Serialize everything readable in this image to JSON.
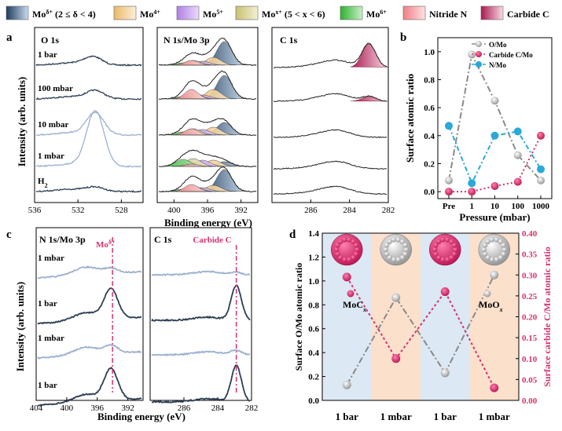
{
  "colors": {
    "dark": "#2d3e55",
    "light": "#9db1cf",
    "gray_marker": "#8a8a8a",
    "pink": "#d63070",
    "cyan": "#2aa9d8",
    "mo_delta": "#2f5a84",
    "mo4": "#f2d49a",
    "mo5": "#c9a6ee",
    "mox": "#d9d59a",
    "mo6": "#66cc66",
    "nitride": "#f4a0a4",
    "carbide": "#c23a6a",
    "bg_blue": "#dce8f4",
    "bg_orange": "#fbe0cc"
  },
  "legend": {
    "items": [
      {
        "label": "Mo",
        "sup": "δ+",
        "suffix": " (2 ≤ δ < 4)",
        "color": "#2f5a84"
      },
      {
        "label": "Mo",
        "sup": "4+",
        "suffix": "",
        "color": "#f2d49a"
      },
      {
        "label": "Mo",
        "sup": "5+",
        "suffix": "",
        "color": "#c9a6ee"
      },
      {
        "label": "Mo",
        "sup": "x+",
        "suffix": " (5 < x < 6)",
        "color": "#d9d59a"
      },
      {
        "label": "Mo",
        "sup": "6+",
        "suffix": "",
        "color": "#66cc66"
      },
      {
        "label": "Nitride N",
        "sup": "",
        "suffix": "",
        "color": "#f4a0a4"
      },
      {
        "label": "Carbide C",
        "sup": "",
        "suffix": "",
        "color": "#c23a6a"
      }
    ]
  },
  "panels": {
    "a": {
      "letter": "a",
      "ylabel": "Intensity (arb. units)",
      "xlabel": "Binding energy (eV)",
      "sub_o": "O 1s",
      "sub_n": "N 1s/Mo 3p",
      "sub_c": "C 1s",
      "row_labels": [
        "1 bar",
        "100 mbar",
        "10 mbar",
        "1 mbar",
        "H2"
      ]
    },
    "b": {
      "letter": "b"
    },
    "c": {
      "letter": "c",
      "ylabel": "Intensity (arb. units)",
      "xlabel": "Binding energy (eV)",
      "sub_n": "N 1s/Mo 3p",
      "sub_c": "C 1s",
      "mo_annot": "Moδ+",
      "carbide_annot": "Carbide C",
      "row_labels": [
        "1 mbar",
        "1 bar",
        "1 mbar",
        "1 bar"
      ]
    },
    "d": {
      "letter": "d"
    }
  },
  "chart_data": [
    {
      "id": "a-O1s",
      "type": "line",
      "title": "O 1s",
      "xlabel": "Binding energy (eV)",
      "ylabel": "Intensity (arb. units)",
      "xlim": [
        536,
        526
      ],
      "xticks": [
        536,
        532,
        528
      ],
      "series": [
        {
          "name": "1 bar",
          "peak_eV": 530.6,
          "color": "dark"
        },
        {
          "name": "100 mbar",
          "peak_eV": 530.4,
          "color": "dark"
        },
        {
          "name": "10 mbar",
          "peak_eV": 530.4,
          "color": "light"
        },
        {
          "name": "1 mbar",
          "peak_eV": 530.4,
          "color": "light"
        },
        {
          "name": "H2",
          "peak_eV": 530.4,
          "color": "dark"
        }
      ]
    },
    {
      "id": "a-N1s-Mo3p",
      "type": "line",
      "title": "N 1s/Mo 3p",
      "xlabel": "Binding energy (eV)",
      "xlim": [
        402,
        390
      ],
      "xticks": [
        400,
        396,
        392
      ],
      "components": [
        "Mo δ+",
        "Mo 4+",
        "Mo 5+",
        "Mo x+",
        "Mo 6+",
        "Nitride N"
      ],
      "series": [
        "1 bar",
        "100 mbar",
        "10 mbar",
        "1 mbar",
        "H2"
      ]
    },
    {
      "id": "a-C1s",
      "type": "line",
      "title": "C 1s",
      "xlabel": "Binding energy (eV)",
      "xlim": [
        288,
        282
      ],
      "xticks": [
        286,
        284,
        282
      ],
      "components": [
        "Carbide C"
      ],
      "series": [
        "1 bar",
        "100 mbar",
        "10 mbar",
        "1 mbar",
        "H2"
      ]
    },
    {
      "id": "b",
      "type": "line",
      "title": "",
      "xlabel": "Pressure (mbar)",
      "ylabel": "Surface atomic ratio",
      "categories": [
        "Pre",
        "1",
        "10",
        "100",
        "1000"
      ],
      "ylim": [
        -0.05,
        1.1
      ],
      "yticks": [
        "0.0",
        "0.2",
        "0.4",
        "0.6",
        "0.8",
        "1.0"
      ],
      "series": [
        {
          "name": "O/Mo",
          "values": [
            0.08,
            0.98,
            0.65,
            0.26,
            0.08
          ],
          "color": "gray_marker",
          "dash": "8,3,2,3"
        },
        {
          "name": "Carbide C/Mo",
          "values": [
            0.0,
            0.0,
            0.04,
            0.07,
            0.4
          ],
          "color": "pink",
          "dash": "2,3"
        },
        {
          "name": "N/Mo",
          "values": [
            0.47,
            0.06,
            0.4,
            0.43,
            0.16
          ],
          "color": "cyan",
          "dash": "6,3,2,3"
        }
      ]
    },
    {
      "id": "c-N1s-Mo3p",
      "type": "line",
      "title": "N 1s/Mo 3p",
      "xlabel": "Binding energy (eV)",
      "xlim": [
        404,
        390
      ],
      "xticks": [
        404,
        400,
        396,
        392
      ],
      "annotation": {
        "label": "Moδ+",
        "x_eV": 394.0
      },
      "series": [
        "1 mbar",
        "1 bar",
        "1 mbar",
        "1 bar"
      ]
    },
    {
      "id": "c-C1s",
      "type": "line",
      "title": "C 1s",
      "xlabel": "Binding energy (eV)",
      "xlim": [
        288,
        282
      ],
      "xticks": [
        286,
        284,
        282
      ],
      "annotation": {
        "label": "Carbide C",
        "x_eV": 282.9
      },
      "series": [
        "1 mbar",
        "1 bar",
        "1 mbar",
        "1 bar"
      ]
    },
    {
      "id": "d",
      "type": "line",
      "categories": [
        "1 bar",
        "1 mbar",
        "1 bar",
        "1 mbar"
      ],
      "ylabel_left": "Surface O/Mo atomic ratio",
      "ylabel_right": "Surface carbide C/Mo atomic ratio",
      "ylim_left": [
        0.0,
        1.4
      ],
      "ylim_right": [
        0.0,
        0.4
      ],
      "yticks_left": [
        "0.0",
        "0.2",
        "0.4",
        "0.6",
        "0.8",
        "1.0",
        "1.2",
        "1.4"
      ],
      "yticks_right": [
        "0.00",
        "0.05",
        "0.10",
        "0.15",
        "0.20",
        "0.25",
        "0.30",
        "0.35",
        "0.40"
      ],
      "series": [
        {
          "name": "O/Mo",
          "axis": "left",
          "values": [
            0.13,
            0.86,
            0.23,
            1.05
          ],
          "color": "gray_marker"
        },
        {
          "name": "Carbide C/Mo",
          "axis": "right",
          "values": [
            0.295,
            0.1,
            0.26,
            0.03
          ],
          "color": "pink"
        }
      ],
      "labels": {
        "moc": "MoC",
        "moc_sub": "x",
        "moo": "MoO",
        "moo_sub": "x"
      }
    }
  ]
}
